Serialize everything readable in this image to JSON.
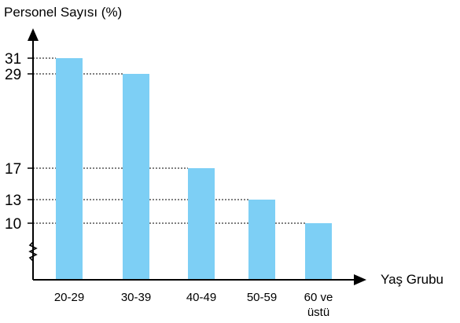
{
  "chart_data": {
    "type": "bar",
    "title": "",
    "ylabel": "Personel Sayısı (%)",
    "xlabel": "Yaş Grubu",
    "categories": [
      [
        "20-29"
      ],
      [
        "30-39"
      ],
      [
        "40-49"
      ],
      [
        "50-59"
      ],
      [
        "60 ve",
        "üstü"
      ]
    ],
    "values": [
      31,
      29,
      17,
      13,
      10
    ],
    "yticks": [
      31,
      29,
      17,
      13,
      10
    ],
    "ylim": [
      0,
      34
    ],
    "axis_break": true,
    "grid": false,
    "reference_lines": "dotted lines from y-axis to bar tops",
    "colors": {
      "bar": "#7dcff5",
      "axis": "#000000",
      "dotted": "#000000"
    }
  }
}
